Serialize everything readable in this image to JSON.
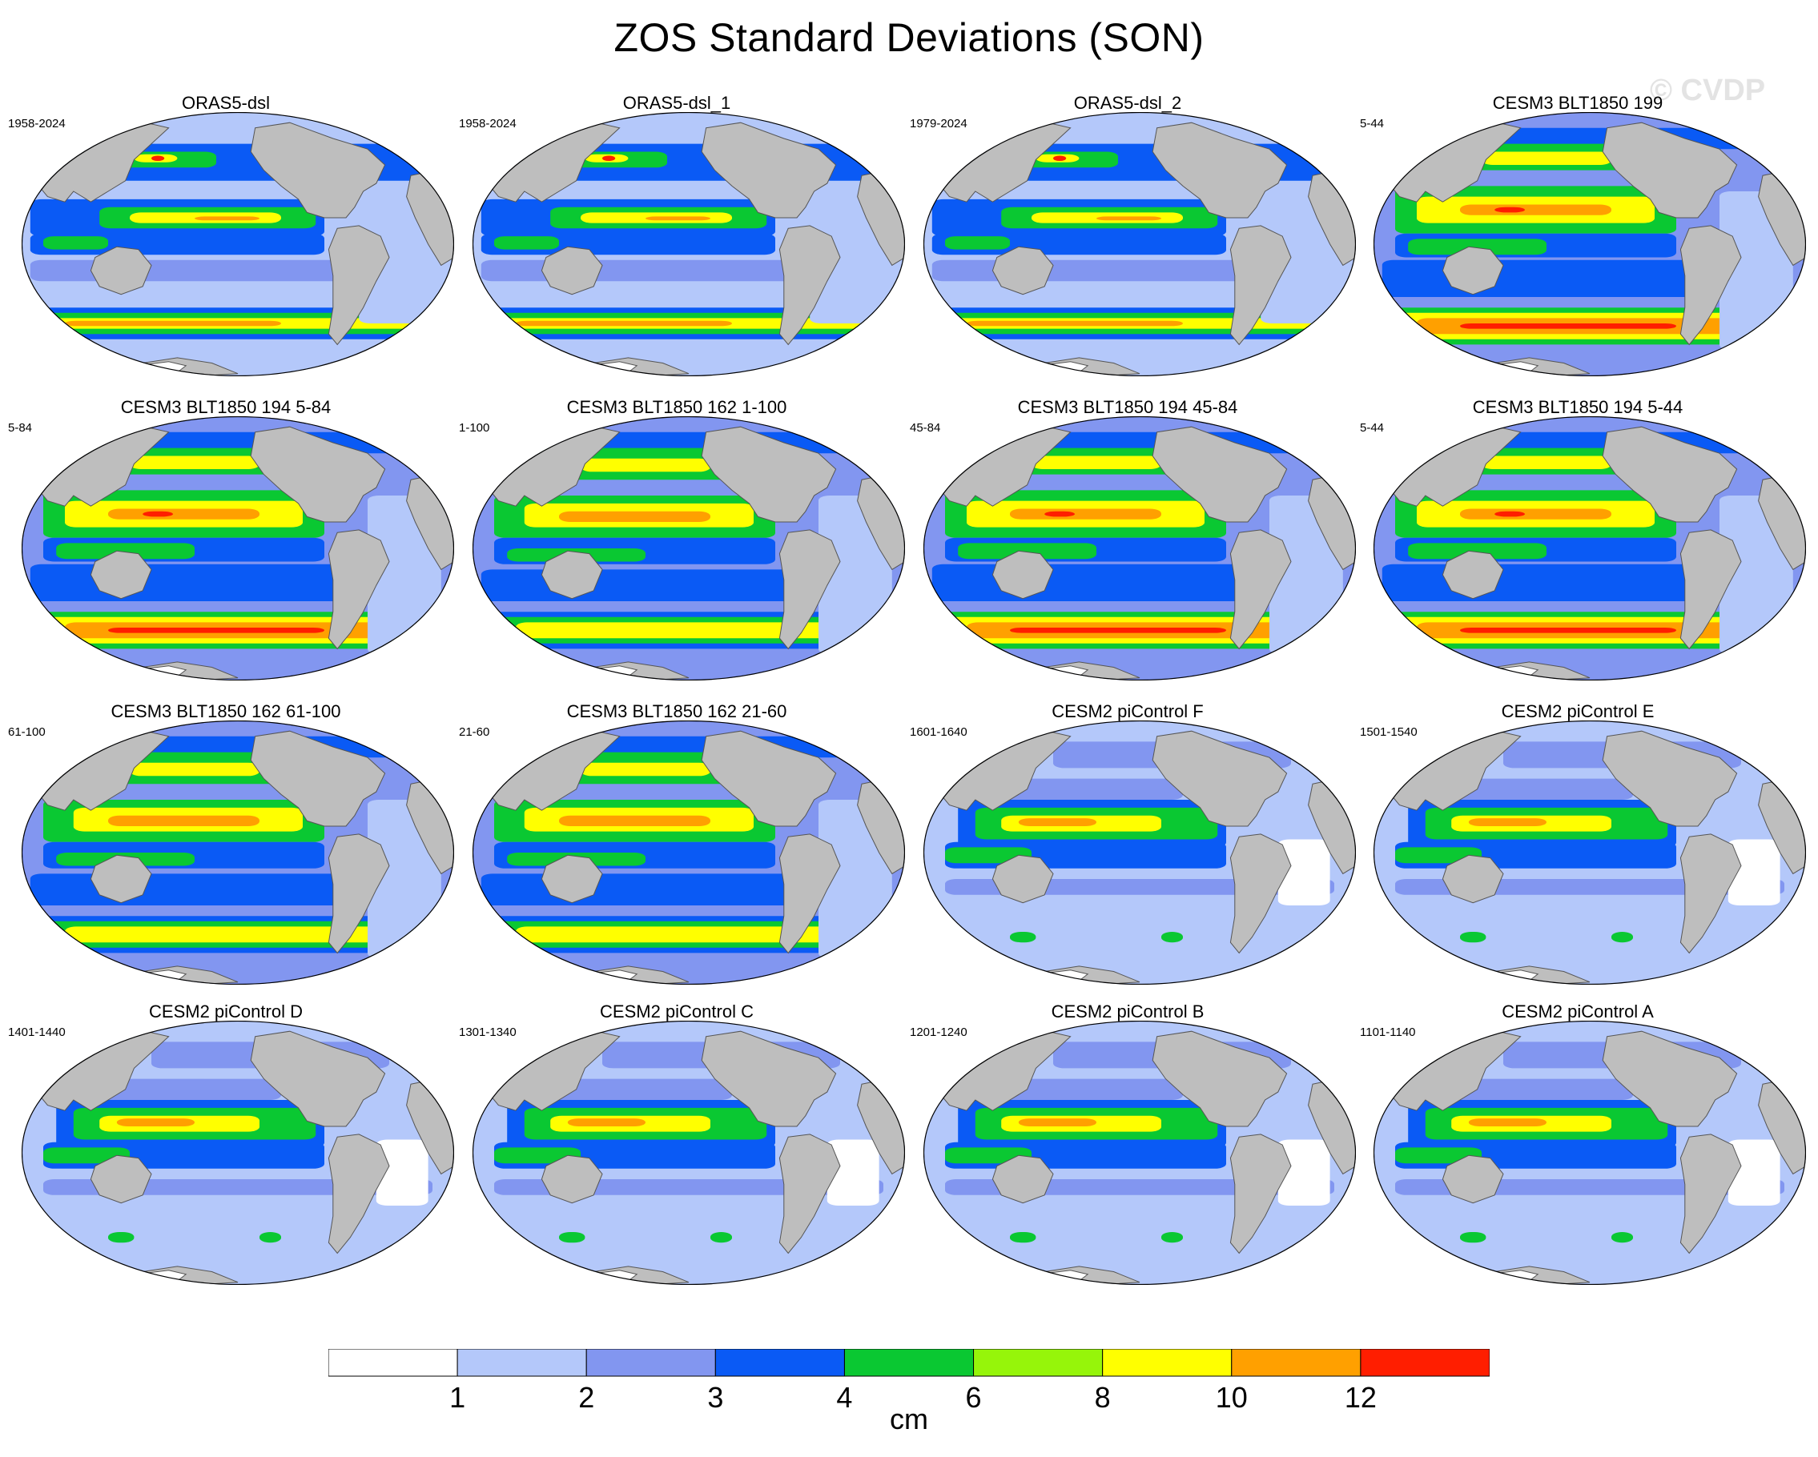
{
  "title": "ZOS Standard Deviations (SON)",
  "watermark": "© CVDP",
  "panels": [
    {
      "title": "ORAS5-dsl",
      "years": "1958-2024",
      "style": "obs"
    },
    {
      "title": "ORAS5-dsl_1",
      "years": "1958-2024",
      "style": "obs"
    },
    {
      "title": "ORAS5-dsl_2",
      "years": "1979-2024",
      "style": "obs"
    },
    {
      "title": "CESM3 BLT1850 199",
      "years": "5-44",
      "style": "cesm3"
    },
    {
      "title": "CESM3 BLT1850 194 5-84",
      "years": "5-84",
      "style": "cesm3"
    },
    {
      "title": "CESM3 BLT1850 162 1-100",
      "years": "1-100",
      "style": "cesm3b"
    },
    {
      "title": "CESM3 BLT1850 194 45-84",
      "years": "45-84",
      "style": "cesm3"
    },
    {
      "title": "CESM3 BLT1850 194 5-44",
      "years": "5-44",
      "style": "cesm3"
    },
    {
      "title": "CESM3 BLT1850 162 61-100",
      "years": "61-100",
      "style": "cesm3b"
    },
    {
      "title": "CESM3 BLT1850 162 21-60",
      "years": "21-60",
      "style": "cesm3b"
    },
    {
      "title": "CESM2 piControl F",
      "years": "1601-1640",
      "style": "cesm2"
    },
    {
      "title": "CESM2 piControl E",
      "years": "1501-1540",
      "style": "cesm2"
    },
    {
      "title": "CESM2 piControl D",
      "years": "1401-1440",
      "style": "cesm2"
    },
    {
      "title": "CESM2 piControl C",
      "years": "1301-1340",
      "style": "cesm2"
    },
    {
      "title": "CESM2 piControl B",
      "years": "1201-1240",
      "style": "cesm2"
    },
    {
      "title": "CESM2 piControl A",
      "years": "1101-1140",
      "style": "cesm2"
    }
  ],
  "colorbar": {
    "units": "cm",
    "colors": [
      "#ffffff",
      "#b4c8fa",
      "#8296f0",
      "#0a5af5",
      "#0ac832",
      "#96f50a",
      "#ffff00",
      "#ffa000",
      "#ff1e00"
    ],
    "tick_labels": [
      "1",
      "2",
      "3",
      "4",
      "6",
      "8",
      "10",
      "12"
    ],
    "land_color": "#bebebe"
  }
}
